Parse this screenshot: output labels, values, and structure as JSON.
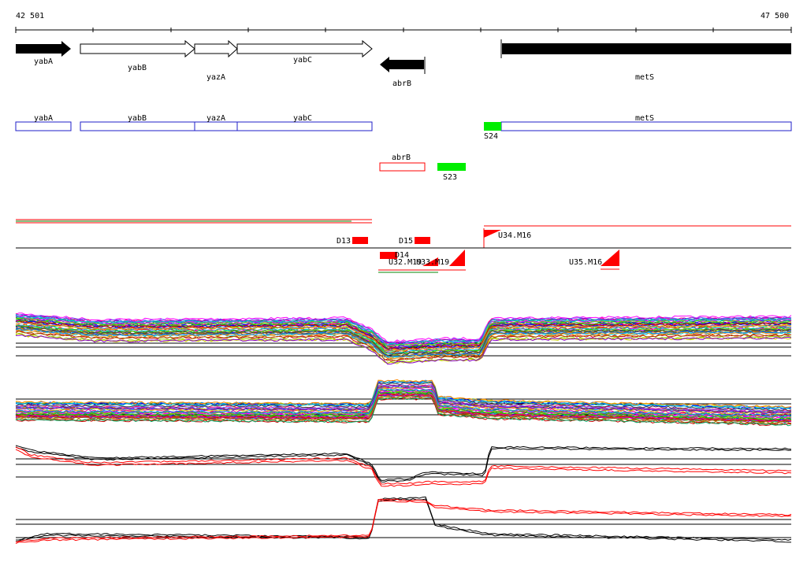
{
  "ruler": {
    "start_label": "42 501",
    "end_label": "47 500"
  },
  "genes": [
    {
      "name": "yabA",
      "strand": "+",
      "filled": true
    },
    {
      "name": "yabB",
      "strand": "+",
      "filled": false
    },
    {
      "name": "yazA",
      "strand": "+",
      "filled": false
    },
    {
      "name": "yabC",
      "strand": "+",
      "filled": false
    },
    {
      "name": "abrB",
      "strand": "-",
      "filled": true
    },
    {
      "name": "metS",
      "strand": "+",
      "filled": true
    }
  ],
  "annotation_row": {
    "blue_boxes": [
      "yabA",
      "yabB",
      "yazA",
      "yabC",
      "metS"
    ],
    "red_box": "abrB",
    "green_segments": [
      "S24",
      "S23"
    ]
  },
  "features": {
    "downstream": [
      "D13",
      "D15",
      "D14"
    ],
    "upstream": [
      "U34.M16",
      "U32.M19",
      "U33.M19",
      "U35.M16"
    ]
  },
  "colors": {
    "gene_fill": "#000000",
    "blue_box": "#1f1fc8",
    "red": "#ff0000",
    "green": "#00ee00",
    "axis": "#000000"
  }
}
